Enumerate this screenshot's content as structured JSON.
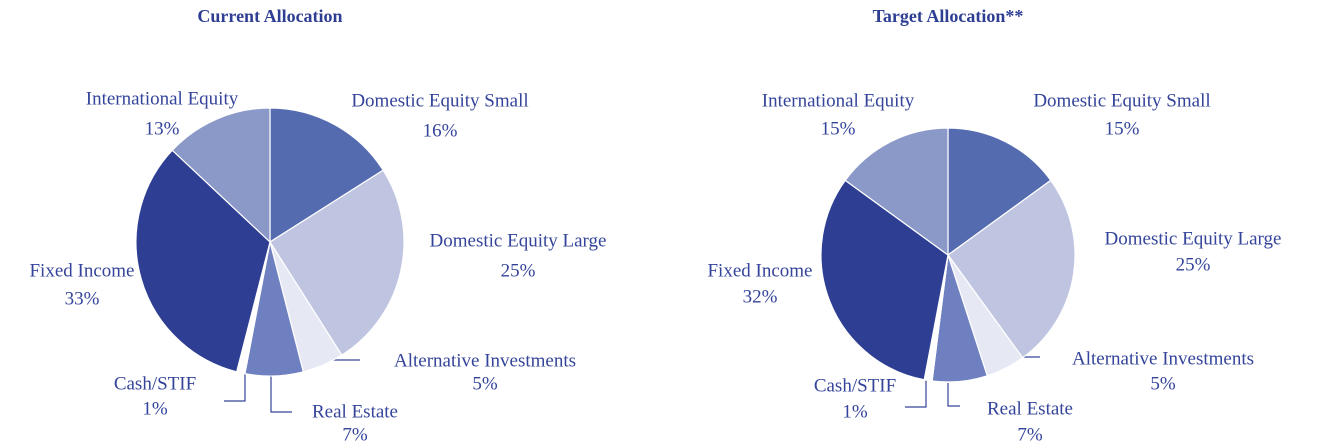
{
  "chart_data": [
    {
      "type": "pie",
      "title": "Current Allocation",
      "categories": [
        "Domestic Equity Small",
        "Domestic Equity Large",
        "Alternative Investments",
        "Real Estate",
        "Cash/STIF",
        "Fixed Income",
        "International Equity"
      ],
      "values": [
        16,
        25,
        5,
        7,
        1,
        33,
        13
      ],
      "value_labels": [
        "16%",
        "25%",
        "5%",
        "7%",
        "1%",
        "33%",
        "13%"
      ],
      "colors": [
        "#546bb0",
        "#bfc5e0",
        "#e6e8f3",
        "#6f80c0",
        "#ffffff",
        "#2e3f93",
        "#8a99c8"
      ]
    },
    {
      "type": "pie",
      "title": "Target Allocation**",
      "categories": [
        "Domestic Equity Small",
        "Domestic Equity Large",
        "Alternative Investments",
        "Real Estate",
        "Cash/STIF",
        "Fixed Income",
        "International Equity"
      ],
      "values": [
        15,
        25,
        5,
        7,
        1,
        32,
        15
      ],
      "value_labels": [
        "15%",
        "25%",
        "5%",
        "7%",
        "1%",
        "32%",
        "15%"
      ],
      "colors": [
        "#546bb0",
        "#bfc5e0",
        "#e6e8f3",
        "#6f80c0",
        "#ffffff",
        "#2e3f93",
        "#8a99c8"
      ]
    }
  ]
}
